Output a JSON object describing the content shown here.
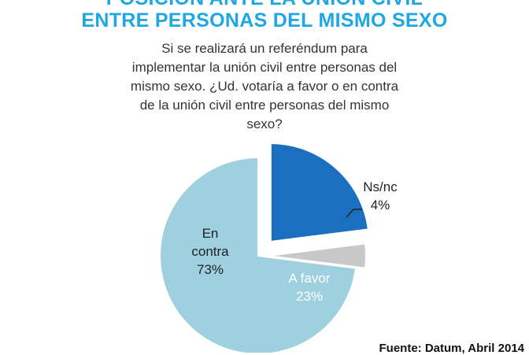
{
  "title": {
    "line1": "POSICIÓN ANTE LA UNIÓN CIVIL",
    "line2": "ENTRE PERSONAS DEL MISMO SEXO"
  },
  "question": {
    "line1": "Si se realizará un referéndum para",
    "line2": "implementar la unión civil entre personas del",
    "line3": "mismo sexo.  ¿Ud. votaría a favor o en contra",
    "line4": "de la unión civil entre personas del mismo",
    "line5": "sexo?"
  },
  "chart_data": {
    "type": "pie",
    "slices": [
      {
        "label": "A favor",
        "value": 23,
        "pct_label": "23%",
        "color": "#1a6fc0"
      },
      {
        "label": "Ns/nc",
        "value": 4,
        "pct_label": "4%",
        "color": "#c8c8c8"
      },
      {
        "label": "En contra",
        "value": 73,
        "pct_label": "73%",
        "color": "#9ed0e0"
      }
    ],
    "label_lines": {
      "en_contra": [
        "En",
        "contra",
        "73%"
      ],
      "a_favor": [
        "A favor",
        "23%"
      ],
      "nsnc": [
        "Ns/nc",
        "4%"
      ]
    }
  },
  "source": "Fuente: Datum, Abril 2014"
}
